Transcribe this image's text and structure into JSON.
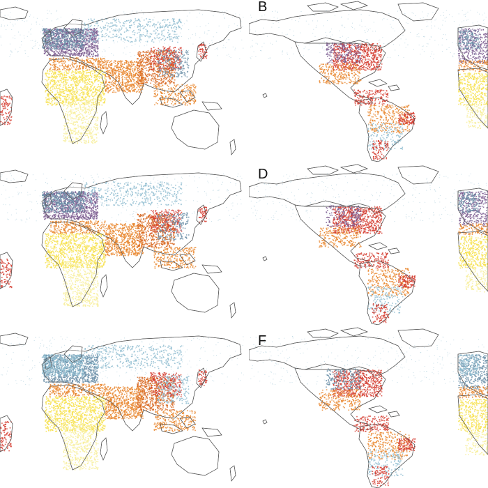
{
  "figure": {
    "panels": [
      {
        "id": "A",
        "letter": "",
        "view": "eurasia-africa",
        "variant": 0
      },
      {
        "id": "B",
        "letter": "B",
        "view": "americas",
        "variant": 0
      },
      {
        "id": "C",
        "letter": "",
        "view": "eurasia-africa",
        "variant": 1
      },
      {
        "id": "D",
        "letter": "D",
        "view": "americas",
        "variant": 1
      },
      {
        "id": "E",
        "letter": "",
        "view": "eurasia-africa",
        "variant": 2
      },
      {
        "id": "F",
        "letter": "F",
        "view": "americas",
        "variant": 2
      }
    ],
    "colors": {
      "yellow": "#f6e14a",
      "pale_yellow": "#f8ef9a",
      "orange": "#e9852a",
      "dark_orange": "#d8661e",
      "red": "#d43b2e",
      "purple": "#7b5a8e",
      "blue_grey": "#6a8fa8",
      "light_blue": "#8dbcd0",
      "outline": "#555555"
    }
  }
}
